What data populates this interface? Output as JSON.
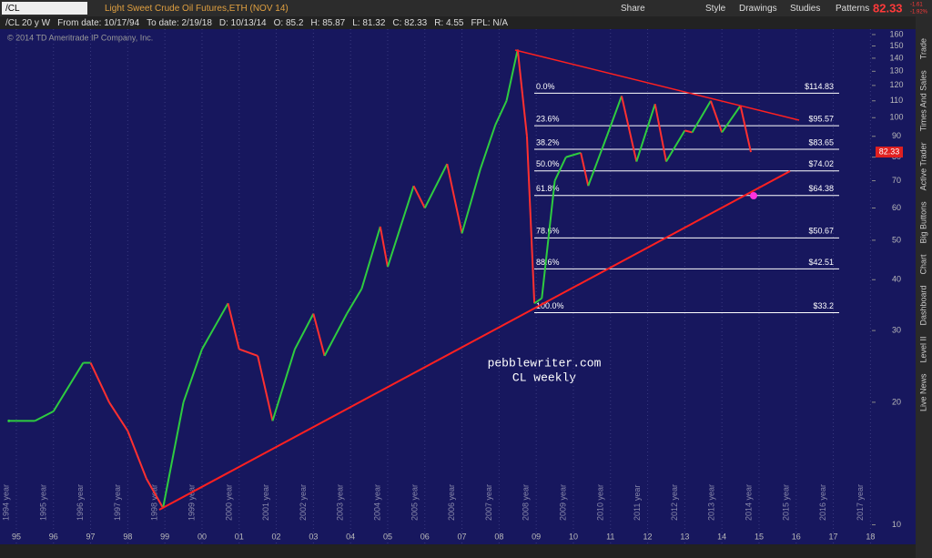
{
  "toolbar": {
    "symbol": "/CL",
    "description": "Light Sweet Crude Oil Futures,ETH (NOV 14)",
    "buttons": [
      "Share",
      "Style",
      "Drawings",
      "Studies",
      "Patterns"
    ],
    "price": "82.33",
    "change": "-1.61",
    "change_pct": "-1.92%"
  },
  "header": {
    "items": [
      "/CL 20 y W",
      "From date: 10/17/94",
      "To date: 2/19/18",
      "D: 10/13/14",
      "O: 85.2",
      "H: 85.87",
      "L: 81.32",
      "C: 82.33",
      "R: 4.55",
      "FPL: N/A"
    ],
    "copyright": "© 2014 TD Ameritrade IP Company, Inc."
  },
  "side_tabs": [
    "Trade",
    "Times And Sales",
    "Active Trader",
    "Big Buttons",
    "Chart",
    "Dashboard",
    "Level II",
    "Live News"
  ],
  "watermark": [
    "pebblewriter.com",
    "CL weekly"
  ],
  "chart_data": {
    "type": "line",
    "log_scale": true,
    "x": [
      1994.8,
      1995.0,
      1995.5,
      1996.0,
      1996.8,
      1997.0,
      1997.5,
      1998.0,
      1998.5,
      1998.95,
      1999.5,
      2000.0,
      2000.7,
      2001.0,
      2001.5,
      2001.9,
      2002.5,
      2003.0,
      2003.3,
      2003.9,
      2004.3,
      2004.8,
      2005.0,
      2005.7,
      2006.0,
      2006.6,
      2007.0,
      2007.5,
      2007.9,
      2008.2,
      2008.5,
      2008.75,
      2008.95,
      2009.15,
      2009.5,
      2009.8,
      2010.2,
      2010.4,
      2010.9,
      2011.3,
      2011.7,
      2012.2,
      2012.5,
      2013.0,
      2013.2,
      2013.7,
      2014.0,
      2014.5,
      2014.78
    ],
    "values": [
      18,
      18,
      18,
      19,
      25,
      25,
      20,
      17,
      13,
      11,
      20,
      27,
      35,
      27,
      26,
      18,
      27,
      33,
      26,
      33,
      38,
      54,
      43,
      68,
      60,
      77,
      52,
      75,
      96,
      110,
      147,
      90,
      35,
      36,
      70,
      80,
      82,
      68,
      90,
      113,
      78,
      108,
      78,
      93,
      92,
      110,
      92,
      107,
      82.33
    ],
    "last_value_label": "82.33",
    "xlim": [
      1994.56,
      2018.04
    ],
    "ylim": [
      9,
      165
    ],
    "yticks": [
      10,
      20,
      30,
      40,
      50,
      60,
      70,
      80,
      90,
      100,
      110,
      120,
      130,
      140,
      150,
      160
    ],
    "xticks": [
      {
        "value": 1995,
        "label": "95"
      },
      {
        "value": 1996,
        "label": "96"
      },
      {
        "value": 1997,
        "label": "97"
      },
      {
        "value": 1998,
        "label": "98"
      },
      {
        "value": 1999,
        "label": "99"
      },
      {
        "value": 2000,
        "label": "00"
      },
      {
        "value": 2001,
        "label": "01"
      },
      {
        "value": 2002,
        "label": "02"
      },
      {
        "value": 2003,
        "label": "03"
      },
      {
        "value": 2004,
        "label": "04"
      },
      {
        "value": 2005,
        "label": "05"
      },
      {
        "value": 2006,
        "label": "06"
      },
      {
        "value": 2007,
        "label": "07"
      },
      {
        "value": 2008,
        "label": "08"
      },
      {
        "value": 2009,
        "label": "09"
      },
      {
        "value": 2010,
        "label": "10"
      },
      {
        "value": 2011,
        "label": "11"
      },
      {
        "value": 2012,
        "label": "12"
      },
      {
        "value": 2013,
        "label": "13"
      },
      {
        "value": 2014,
        "label": "14"
      },
      {
        "value": 2015,
        "label": "15"
      },
      {
        "value": 2016,
        "label": "16"
      },
      {
        "value": 2017,
        "label": "17"
      },
      {
        "value": 2018,
        "label": "18"
      }
    ],
    "year_ticks": [
      {
        "value": 1994,
        "label": "1994 year"
      },
      {
        "value": 1995,
        "label": "1995 year"
      },
      {
        "value": 1996,
        "label": "1996 year"
      },
      {
        "value": 1997,
        "label": "1997 year"
      },
      {
        "value": 1998,
        "label": "1998 year"
      },
      {
        "value": 1999,
        "label": "1999 year"
      },
      {
        "value": 2000,
        "label": "2000 year"
      },
      {
        "value": 2001,
        "label": "2001 year"
      },
      {
        "value": 2002,
        "label": "2002 year"
      },
      {
        "value": 2003,
        "label": "2003 year"
      },
      {
        "value": 2004,
        "label": "2004 year"
      },
      {
        "value": 2005,
        "label": "2005 year"
      },
      {
        "value": 2006,
        "label": "2006 year"
      },
      {
        "value": 2007,
        "label": "2007 year"
      },
      {
        "value": 2008,
        "label": "2008 year"
      },
      {
        "value": 2009,
        "label": "2009 year"
      },
      {
        "value": 2010,
        "label": "2010 year"
      },
      {
        "value": 2011,
        "label": "2011 year"
      },
      {
        "value": 2012,
        "label": "2012 year"
      },
      {
        "value": 2013,
        "label": "2013 year"
      },
      {
        "value": 2014,
        "label": "2014 year"
      },
      {
        "value": 2015,
        "label": "2015 year"
      },
      {
        "value": 2016,
        "label": "2016 year"
      },
      {
        "value": 2017,
        "label": "2017 year"
      }
    ],
    "fib_levels": [
      {
        "pct": "0.0%",
        "value": 114.83,
        "label": "$114.83"
      },
      {
        "pct": "23.6%",
        "value": 95.57,
        "label": "$95.57"
      },
      {
        "pct": "38.2%",
        "value": 83.65,
        "label": "$83.65"
      },
      {
        "pct": "50.0%",
        "value": 74.02,
        "label": "$74.02"
      },
      {
        "pct": "61.8%",
        "value": 64.38,
        "label": "$64.38"
      },
      {
        "pct": "78.6%",
        "value": 50.67,
        "label": "$50.67"
      },
      {
        "pct": "88.6%",
        "value": 42.51,
        "label": "$42.51"
      },
      {
        "pct": "100.0%",
        "value": 33.2,
        "label": "$33.2"
      }
    ],
    "up_color": "#2ecc40",
    "down_color": "#ff3030",
    "fib_color": "#ffffff",
    "trend_color": "#ff2020"
  }
}
